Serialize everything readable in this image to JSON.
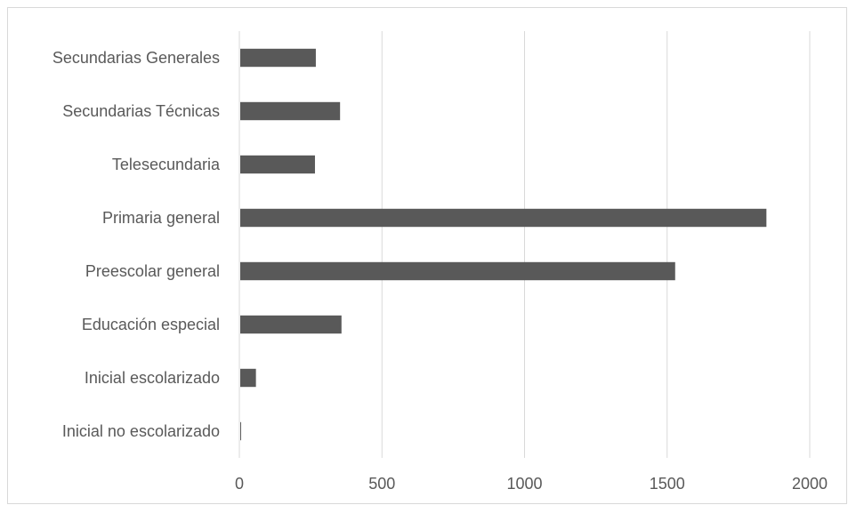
{
  "chart_data": {
    "type": "bar",
    "orientation": "horizontal",
    "categories": [
      "Inicial no escolarizado",
      "Inicial escolarizado",
      "Educación especial",
      "Preescolar general",
      "Primaria general",
      "Telesecundaria",
      "Secundarias Técnicas",
      "Secundarias Generales"
    ],
    "values": [
      3,
      55,
      355,
      1525,
      1845,
      262,
      350,
      265
    ],
    "xlim": [
      0,
      2000
    ],
    "xticks": [
      "0",
      "500",
      "1000",
      "1500",
      "2000"
    ],
    "grid": true,
    "legend": "none",
    "colors": {
      "bar": "#595959",
      "grid": "#d9d9d9",
      "text": "#595959"
    }
  }
}
